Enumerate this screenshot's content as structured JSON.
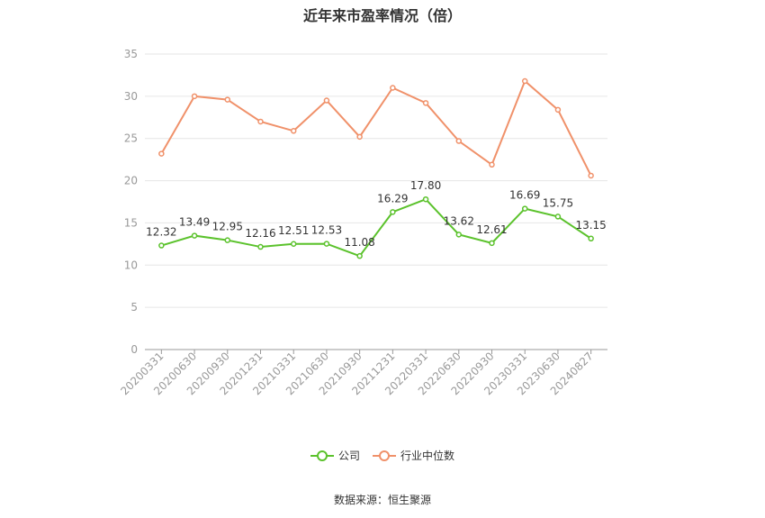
{
  "title": "近年来市盈率情况（倍）",
  "source": "数据来源：恒生聚源",
  "colors": {
    "company": "#5bc22c",
    "industry": "#f0916a",
    "grid": "#e6e6e6",
    "axis": "#999999",
    "tick_text": "#999999"
  },
  "chart_data": {
    "type": "line",
    "title": "近年来市盈率情况（倍）",
    "categories": [
      "20200331",
      "20200630",
      "20200930",
      "20201231",
      "20210331",
      "20210630",
      "20210930",
      "20211231",
      "20220331",
      "20220630",
      "20220930",
      "20230331",
      "20230630",
      "20240827"
    ],
    "ylim": [
      0,
      35
    ],
    "yticks": [
      0,
      5,
      10,
      15,
      20,
      25,
      30,
      35
    ],
    "grid": true,
    "legend_position": "bottom",
    "series": [
      {
        "name": "公司",
        "values": [
          12.32,
          13.49,
          12.95,
          12.16,
          12.51,
          12.53,
          11.08,
          16.29,
          17.8,
          13.62,
          12.61,
          16.69,
          15.75,
          13.15
        ],
        "labels": [
          "12.32",
          "13.49",
          "12.95",
          "12.16",
          "12.51",
          "12.53",
          "11.08",
          "16.29",
          "17.80",
          "13.62",
          "12.61",
          "16.69",
          "15.75",
          "13.15"
        ]
      },
      {
        "name": "行业中位数",
        "values": [
          23.2,
          30.0,
          29.6,
          27.0,
          25.9,
          29.5,
          25.2,
          31.0,
          29.2,
          24.7,
          21.9,
          31.8,
          28.4,
          20.6
        ]
      }
    ]
  }
}
